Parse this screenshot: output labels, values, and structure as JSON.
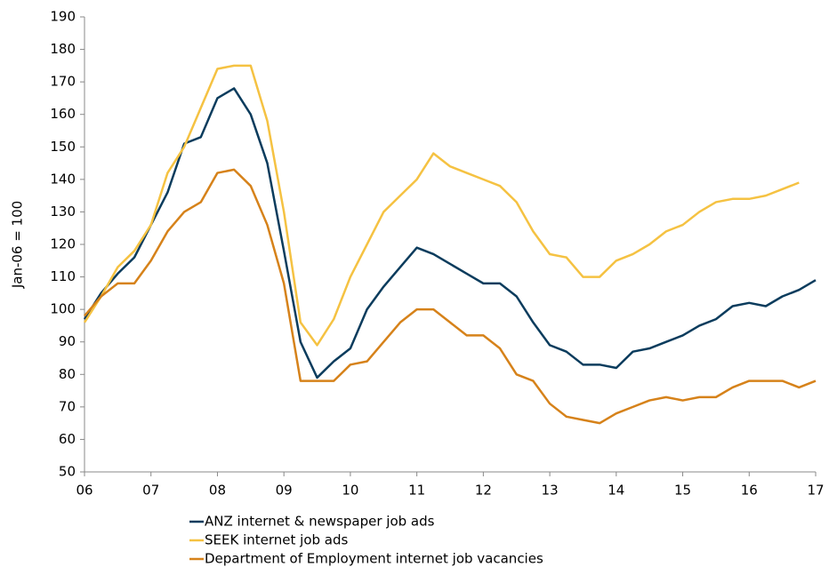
{
  "chart_data": {
    "type": "line",
    "ylabel": "Jan-06 = 100",
    "x": [
      6,
      6.25,
      6.5,
      6.75,
      7,
      7.25,
      7.5,
      7.75,
      8,
      8.25,
      8.5,
      8.75,
      9,
      9.25,
      9.5,
      9.75,
      10,
      10.25,
      10.5,
      10.75,
      11,
      11.25,
      11.5,
      11.75,
      12,
      12.25,
      12.5,
      12.75,
      13,
      13.25,
      13.5,
      13.75,
      14,
      14.25,
      14.5,
      14.75,
      15,
      15.25,
      15.5,
      15.75,
      16,
      16.25,
      16.5,
      16.75,
      17
    ],
    "series": [
      {
        "name": "ANZ internet & newspaper job ads",
        "color": "#0b3c5d",
        "values": [
          97,
          105,
          111,
          116,
          126,
          136,
          151,
          153,
          165,
          168,
          160,
          145,
          118,
          90,
          79,
          84,
          88,
          100,
          107,
          113,
          119,
          117,
          114,
          111,
          108,
          108,
          104,
          96,
          89,
          87,
          83,
          83,
          82,
          87,
          88,
          90,
          92,
          95,
          97,
          101,
          102,
          101,
          104,
          106,
          109
        ]
      },
      {
        "name": "SEEK internet job ads",
        "color": "#f5c242",
        "values": [
          96,
          104,
          113,
          118,
          126,
          142,
          150,
          162,
          174,
          175,
          175,
          158,
          130,
          96,
          89,
          97,
          110,
          120,
          130,
          135,
          140,
          148,
          144,
          142,
          140,
          138,
          133,
          124,
          117,
          116,
          110,
          110,
          115,
          117,
          120,
          124,
          126,
          130,
          133,
          134,
          134,
          135,
          137,
          139,
          null
        ]
      },
      {
        "name": "Department of Employment internet job vacancies",
        "color": "#d6821a",
        "values": [
          98,
          104,
          108,
          108,
          115,
          124,
          130,
          133,
          142,
          143,
          138,
          126,
          108,
          78,
          78,
          78,
          83,
          84,
          90,
          96,
          100,
          100,
          96,
          92,
          92,
          88,
          80,
          78,
          71,
          67,
          66,
          65,
          68,
          70,
          72,
          73,
          72,
          73,
          73,
          76,
          78,
          78,
          78,
          76,
          78
        ]
      }
    ],
    "xlim": [
      6,
      17
    ],
    "xticks": [
      {
        "value": 6,
        "label": "06"
      },
      {
        "value": 7,
        "label": "07"
      },
      {
        "value": 8,
        "label": "08"
      },
      {
        "value": 9,
        "label": "09"
      },
      10,
      11,
      12,
      13,
      14,
      15,
      16,
      17
    ],
    "ylim": [
      50,
      190
    ],
    "yticks": [
      50,
      60,
      70,
      80,
      90,
      100,
      110,
      120,
      130,
      140,
      150,
      160,
      170,
      180,
      190
    ],
    "grid": false,
    "legend": "bottom"
  }
}
